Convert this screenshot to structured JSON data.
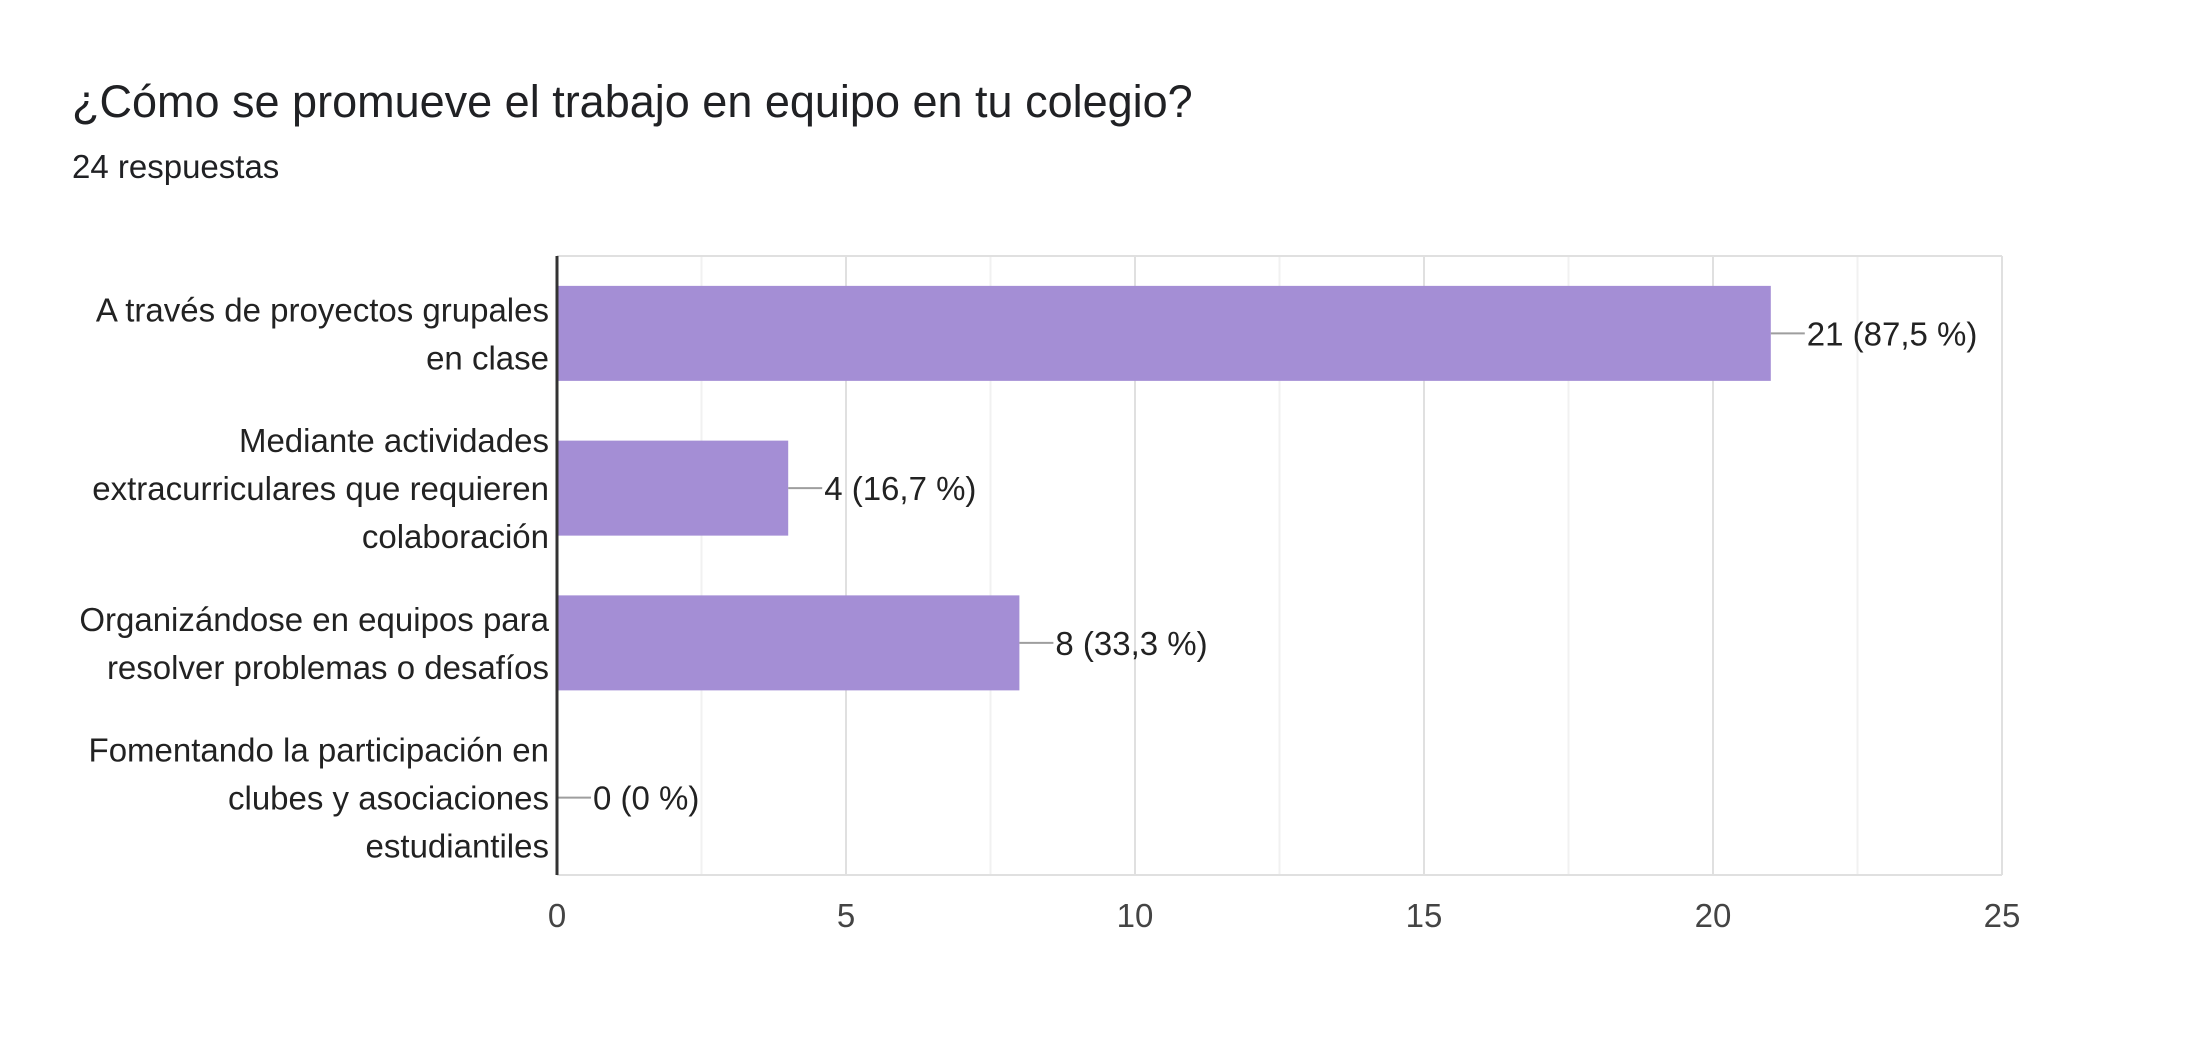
{
  "header": {
    "title": "¿Cómo se promueve el trabajo en equipo en tu colegio?",
    "responses": "24 respuestas"
  },
  "colors": {
    "bar": "#a48ed5",
    "grid_major": "#e0e0e0",
    "grid_minor": "#f1f1f1",
    "axis": "#333333",
    "leader": "#9e9e9e"
  },
  "chart_data": {
    "type": "bar",
    "orientation": "horizontal",
    "categories": [
      [
        "A través de proyectos grupales",
        "en clase"
      ],
      [
        "Mediante actividades",
        "extracurriculares que requieren",
        "colaboración"
      ],
      [
        "Organizándose en equipos para",
        "resolver problemas o desafíos"
      ],
      [
        "Fomentando la participación en",
        "clubes y asociaciones",
        "estudiantiles"
      ]
    ],
    "values": [
      21,
      4,
      8,
      0
    ],
    "data_labels": [
      "21 (87,5 %)",
      "4 (16,7 %)",
      "8 (33,3 %)",
      "0 (0 %)"
    ],
    "xlim": [
      0,
      25
    ],
    "xticks": [
      0,
      5,
      10,
      15,
      20,
      25
    ],
    "grid": true,
    "title": "¿Cómo se promueve el trabajo en equipo en tu colegio?",
    "xlabel": "",
    "ylabel": ""
  }
}
